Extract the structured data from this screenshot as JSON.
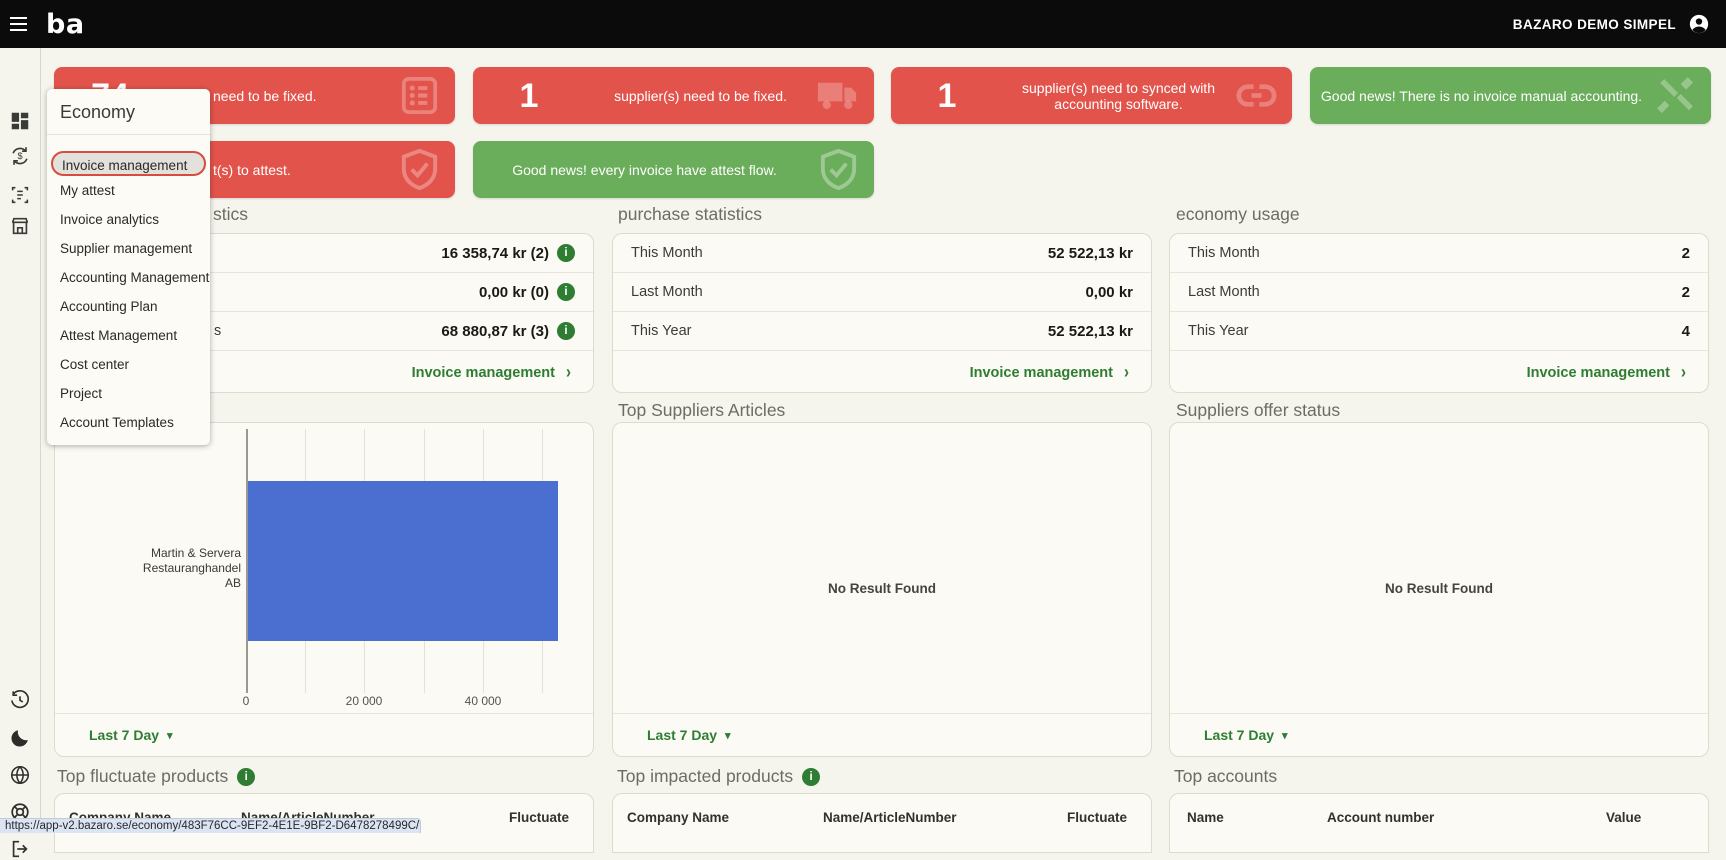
{
  "topbar": {
    "brand": "ba",
    "account": "BAZARO DEMO SIMPEL"
  },
  "menu": {
    "title": "Economy",
    "items": [
      {
        "label": "Invoice management",
        "active": true
      },
      {
        "label": "My attest",
        "active": false
      },
      {
        "label": "Invoice analytics",
        "active": false
      },
      {
        "label": "Supplier management",
        "active": false
      },
      {
        "label": "Accounting Management",
        "active": false
      },
      {
        "label": "Accounting Plan",
        "active": false
      },
      {
        "label": "Attest Management",
        "active": false
      },
      {
        "label": "Cost center",
        "active": false
      },
      {
        "label": "Project",
        "active": false
      },
      {
        "label": "Account Templates",
        "active": false
      }
    ]
  },
  "alerts": {
    "row1": [
      {
        "count": "74",
        "text": "need to be fixed.",
        "severity": "danger",
        "icon": "invoice-list"
      },
      {
        "count": "1",
        "text": "supplier(s) need to be fixed.",
        "severity": "danger",
        "icon": "truck"
      },
      {
        "count": "1",
        "text": "supplier(s) need to synced with accounting software.",
        "severity": "danger",
        "icon": "chain-link"
      },
      {
        "count": "",
        "text": "Good news! There is no invoice manual accounting.",
        "severity": "success",
        "icon": "tools"
      }
    ],
    "row2": [
      {
        "count": "",
        "text": "t(s) to attest.",
        "severity": "danger",
        "icon": "shield-check"
      },
      {
        "count": "",
        "text": "Good news! every invoice have attest flow.",
        "severity": "success",
        "icon": "shield-check"
      }
    ]
  },
  "panels": [
    {
      "title_fragment": "stics",
      "rows": [
        {
          "label": "",
          "value": "16 358,74 kr (2)",
          "info": true
        },
        {
          "label": "",
          "value": "0,00 kr (0)",
          "info": true
        },
        {
          "label_fragment": "s",
          "value": "68 880,87 kr (3)",
          "info": true
        }
      ],
      "footer": "Invoice management"
    },
    {
      "title": "purchase statistics",
      "rows": [
        {
          "label": "This Month",
          "value": "52 522,13 kr"
        },
        {
          "label": "Last Month",
          "value": "0,00 kr"
        },
        {
          "label": "This Year",
          "value": "52 522,13 kr"
        }
      ],
      "footer": "Invoice management"
    },
    {
      "title": "economy usage",
      "rows": [
        {
          "label": "This Month",
          "value": "2"
        },
        {
          "label": "Last Month",
          "value": "2"
        },
        {
          "label": "This Year",
          "value": "4"
        }
      ],
      "footer": "Invoice management"
    }
  ],
  "charts": {
    "left": {
      "period": "Last 7 Day"
    },
    "middle": {
      "title": "Top Suppliers Articles",
      "empty": "No Result Found",
      "period": "Last 7 Day"
    },
    "right": {
      "title": "Suppliers offer status",
      "empty": "No Result Found",
      "period": "Last 7 Day"
    }
  },
  "chart_data": {
    "type": "bar",
    "orientation": "horizontal",
    "categories": [
      "Martin & Servera Restauranghandel AB"
    ],
    "category_lines": [
      "Martin & Servera Restauranghandel",
      "AB"
    ],
    "values": [
      52522
    ],
    "xlim": [
      0,
      55000
    ],
    "xticks": [
      0,
      20000,
      40000
    ],
    "xtick_labels": [
      "0",
      "20 000",
      "40 000"
    ],
    "bar_color": "#4a6fd1",
    "grid": true,
    "legend": false
  },
  "tables": [
    {
      "title": "Top fluctuate products",
      "has_info": true,
      "columns": [
        "Company Name",
        "Name/ArticleNumber",
        "Fluctuate"
      ]
    },
    {
      "title": "Top impacted products",
      "has_info": true,
      "columns": [
        "Company Name",
        "Name/ArticleNumber",
        "Fluctuate"
      ]
    },
    {
      "title": "Top accounts",
      "has_info": false,
      "columns": [
        "Name",
        "Account number",
        "Value"
      ]
    }
  ],
  "statusbar": {
    "url": "https://app-v2.bazaro.se/economy/483F76CC-9EF2-4E1E-9BF2-D6478278499C/invoices"
  },
  "info_icon_glyph": "i",
  "colors": {
    "danger": "#e2544b",
    "success": "#6aad5b",
    "accent_green": "#2e7d32",
    "bar_blue": "#4a6fd1",
    "topbar": "#0b0b0b",
    "page_bg": "#f5f4ed"
  }
}
